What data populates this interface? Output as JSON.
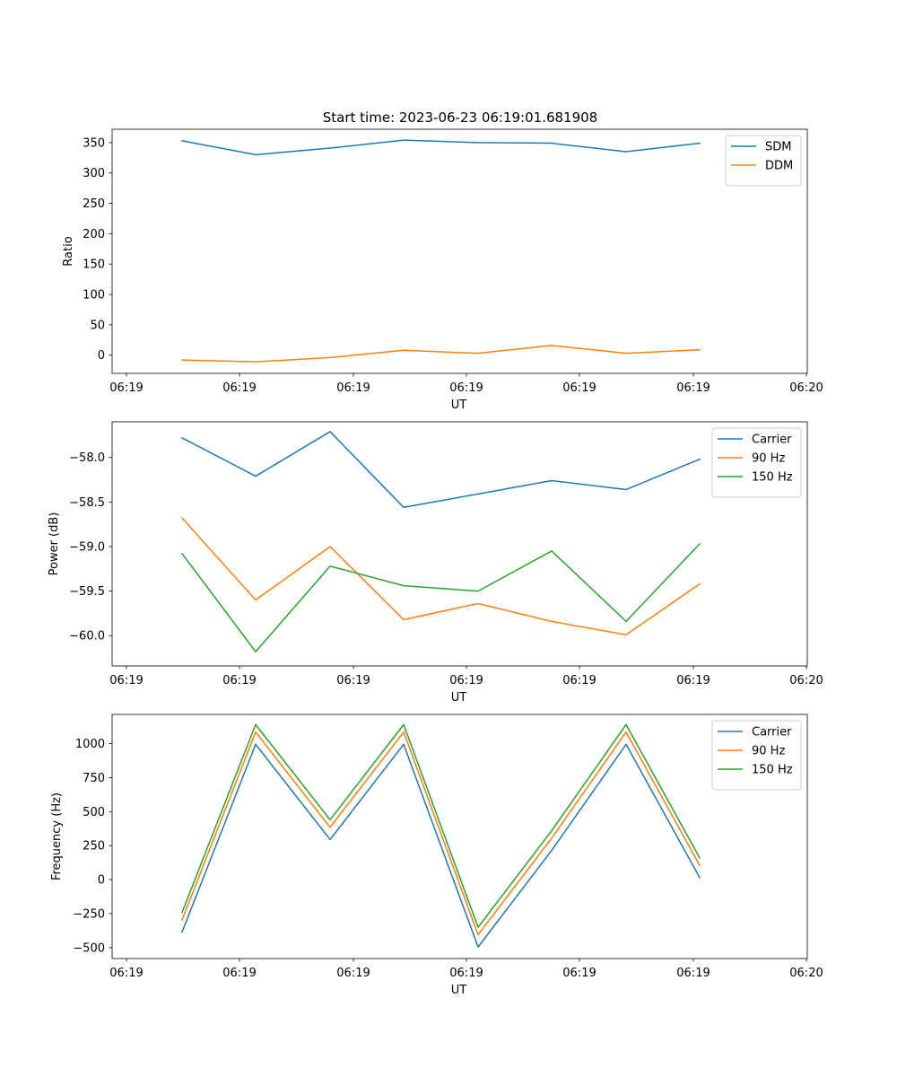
{
  "figure": {
    "title": "Start time: 2023-06-23 06:19:01.681908"
  },
  "chart_data": [
    {
      "type": "line",
      "title": "Start time: 2023-06-23 06:19:01.681908",
      "xlabel": "UT",
      "ylabel": "Ratio",
      "x_tick_labels": [
        "06:19",
        "06:19",
        "06:19",
        "06:19",
        "06:19",
        "06:19",
        "06:20"
      ],
      "y_ticks": [
        0,
        50,
        100,
        150,
        200,
        250,
        300,
        350
      ],
      "ylim": [
        -30,
        372
      ],
      "legend_position": "top-right",
      "series": [
        {
          "name": "SDM",
          "color": "#1f77b4",
          "values": [
            353,
            330,
            341,
            354,
            350,
            349,
            335,
            349
          ]
        },
        {
          "name": "DDM",
          "color": "#ff7f0e",
          "values": [
            -8,
            -11,
            -4,
            8,
            3,
            16,
            3,
            9
          ]
        }
      ]
    },
    {
      "type": "line",
      "xlabel": "UT",
      "ylabel": "Power (dB)",
      "x_tick_labels": [
        "06:19",
        "06:19",
        "06:19",
        "06:19",
        "06:19",
        "06:19",
        "06:20"
      ],
      "y_ticks": [
        -60.0,
        -59.5,
        -59.0,
        -58.5,
        -58.0
      ],
      "y_tick_labels": [
        "−60.0",
        "−59.5",
        "−59.0",
        "−58.5",
        "−58.0"
      ],
      "ylim": [
        -60.34,
        -57.6
      ],
      "legend_position": "top-right",
      "series": [
        {
          "name": "Carrier",
          "color": "#1f77b4",
          "values": [
            -57.78,
            -58.21,
            -57.71,
            -58.56,
            -58.41,
            -58.26,
            -58.36,
            -58.02
          ]
        },
        {
          "name": "90 Hz",
          "color": "#ff7f0e",
          "values": [
            -58.68,
            -59.6,
            -59.0,
            -59.82,
            -59.64,
            -59.84,
            -59.99,
            -59.42
          ]
        },
        {
          "name": "150 Hz",
          "color": "#2ca02c",
          "values": [
            -59.08,
            -60.18,
            -59.22,
            -59.44,
            -59.5,
            -59.05,
            -59.84,
            -58.97
          ]
        }
      ]
    },
    {
      "type": "line",
      "xlabel": "UT",
      "ylabel": "Frequency (Hz)",
      "x_tick_labels": [
        "06:19",
        "06:19",
        "06:19",
        "06:19",
        "06:19",
        "06:19",
        "06:20"
      ],
      "y_ticks": [
        -500,
        -250,
        0,
        250,
        500,
        750,
        1000
      ],
      "y_tick_labels": [
        "−500",
        "−250",
        "0",
        "250",
        "500",
        "750",
        "1000"
      ],
      "ylim": [
        -580,
        1215
      ],
      "legend_position": "top-right",
      "series": [
        {
          "name": "Carrier",
          "color": "#1f77b4",
          "values": [
            -385,
            995,
            295,
            995,
            -495,
            215,
            995,
            15
          ]
        },
        {
          "name": "90 Hz",
          "color": "#ff7f0e",
          "values": [
            -295,
            1085,
            385,
            1085,
            -405,
            305,
            1085,
            105
          ]
        },
        {
          "name": "150 Hz",
          "color": "#2ca02c",
          "values": [
            -240,
            1140,
            440,
            1140,
            -350,
            360,
            1140,
            160
          ]
        }
      ]
    }
  ]
}
